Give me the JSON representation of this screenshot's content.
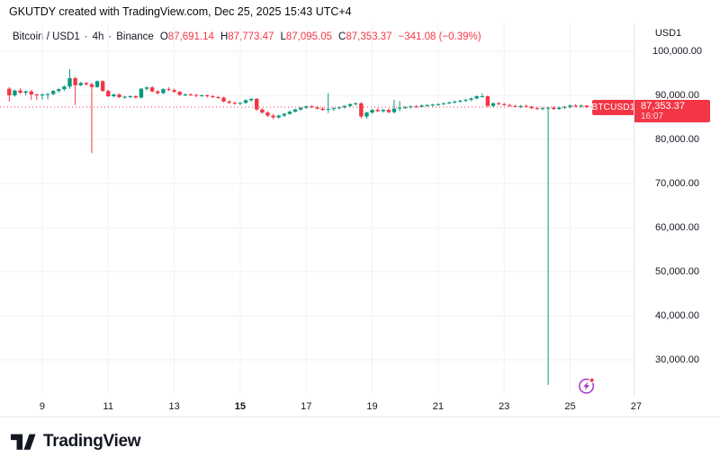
{
  "header": {
    "note": "GKUTDY created with TradingView.com, Dec 25, 2025 15:43 UTC+4"
  },
  "legend": {
    "symbol": "Bitcoin / USD1",
    "sep": "·",
    "interval": "4h",
    "exchange": "Binance",
    "open_label": "O",
    "open": "87,691.14",
    "high_label": "H",
    "high": "87,773.47",
    "low_label": "L",
    "low": "87,095.05",
    "close_label": "C",
    "close": "87,353.37",
    "change": "−341.08 (−0.39%)"
  },
  "price_axis": {
    "title": "USD1"
  },
  "price_tag": {
    "symbol": "BTCUSD1",
    "price": "87,353.37",
    "countdown": "16:07"
  },
  "footer": {
    "brand": "TradingView"
  },
  "icons": {
    "flash": "lightning-icon",
    "notification_dot": "red-dot"
  },
  "colors": {
    "up": "#089981",
    "down": "#F23645",
    "text": "#131722",
    "grid": "#F0F2F6",
    "border": "#E0E3EB",
    "icon_purple": "#A435C8"
  },
  "chart_data": {
    "type": "candlestick",
    "title": "Bitcoin / USD1 · 4h · Binance",
    "interval": "4h",
    "ylabel": "USD1",
    "grid": true,
    "legend_position": "top-left",
    "ylim": [
      21837,
      106327
    ],
    "last_price": 87353.37,
    "last_candle_ohlc": [
      87691.14,
      87773.47,
      87095.05,
      87353.37
    ],
    "y_ticks": [
      {
        "value": 100000,
        "label": "100,000.00"
      },
      {
        "value": 90000,
        "label": "90,000.00"
      },
      {
        "value": 80000,
        "label": "80,000.00"
      },
      {
        "value": 70000,
        "label": "70,000.00"
      },
      {
        "value": 60000,
        "label": "60,000.00"
      },
      {
        "value": 50000,
        "label": "50,000.00"
      },
      {
        "value": 40000,
        "label": "40,000.00"
      },
      {
        "value": 30000,
        "label": "30,000.00"
      }
    ],
    "x_ticks": [
      {
        "label": "9",
        "candle": 6,
        "bold": false
      },
      {
        "label": "11",
        "candle": 18,
        "bold": false
      },
      {
        "label": "13",
        "candle": 30,
        "bold": false
      },
      {
        "label": "15",
        "candle": 42,
        "bold": true
      },
      {
        "label": "17",
        "candle": 54,
        "bold": false
      },
      {
        "label": "19",
        "candle": 66,
        "bold": false
      },
      {
        "label": "21",
        "candle": 78,
        "bold": false
      },
      {
        "label": "23",
        "candle": 90,
        "bold": false
      },
      {
        "label": "25",
        "candle": 102,
        "bold": false
      },
      {
        "label": "27",
        "candle": 114,
        "bold": false
      }
    ],
    "candles": [
      [
        91500,
        91900,
        88600,
        90000
      ],
      [
        90000,
        91300,
        89700,
        91100
      ],
      [
        91100,
        91600,
        90300,
        90600
      ],
      [
        90600,
        91100,
        90000,
        90900
      ],
      [
        90900,
        91200,
        89000,
        90200
      ],
      [
        90200,
        90400,
        88900,
        90100
      ],
      [
        90100,
        90400,
        89000,
        90200
      ],
      [
        90200,
        90500,
        89100,
        90300
      ],
      [
        90300,
        91200,
        90000,
        91000
      ],
      [
        91000,
        91600,
        90600,
        91400
      ],
      [
        91400,
        92200,
        91000,
        92000
      ],
      [
        92000,
        95900,
        91500,
        93900
      ],
      [
        93900,
        94200,
        87800,
        92300
      ],
      [
        92300,
        93100,
        92100,
        92800
      ],
      [
        92800,
        93000,
        92200,
        92500
      ],
      [
        92500,
        92900,
        76900,
        91900
      ],
      [
        91900,
        93400,
        91700,
        93200
      ],
      [
        93200,
        93400,
        90800,
        91000
      ],
      [
        91000,
        91300,
        89600,
        89800
      ],
      [
        89800,
        90400,
        89500,
        90200
      ],
      [
        90200,
        90400,
        89400,
        89600
      ],
      [
        89600,
        89900,
        89200,
        89700
      ],
      [
        89700,
        90000,
        89400,
        89800
      ],
      [
        89800,
        90000,
        89300,
        89500
      ],
      [
        89500,
        91700,
        89300,
        91500
      ],
      [
        91500,
        92000,
        91100,
        91800
      ],
      [
        91800,
        92100,
        90700,
        90900
      ],
      [
        90900,
        91200,
        90200,
        90500
      ],
      [
        90500,
        91600,
        90300,
        91400
      ],
      [
        91400,
        91800,
        91000,
        91200
      ],
      [
        91200,
        91500,
        90600,
        90800
      ],
      [
        90800,
        91000,
        89900,
        90100
      ],
      [
        90100,
        90400,
        89800,
        90200
      ],
      [
        90200,
        90500,
        89900,
        90100
      ],
      [
        90100,
        90300,
        89600,
        89900
      ],
      [
        89900,
        90200,
        89700,
        90000
      ],
      [
        90000,
        90200,
        89500,
        89800
      ],
      [
        89800,
        90100,
        89400,
        89600
      ],
      [
        89600,
        89900,
        89200,
        89500
      ],
      [
        89500,
        89700,
        88400,
        88600
      ],
      [
        88600,
        88900,
        88100,
        88300
      ],
      [
        88300,
        88600,
        87900,
        88100
      ],
      [
        88100,
        88500,
        87800,
        88300
      ],
      [
        88300,
        89100,
        88100,
        88900
      ],
      [
        88900,
        89400,
        88600,
        89200
      ],
      [
        89200,
        89400,
        86500,
        86800
      ],
      [
        86800,
        87100,
        85800,
        86100
      ],
      [
        86100,
        86400,
        85100,
        85400
      ],
      [
        85400,
        85800,
        84600,
        85000
      ],
      [
        85000,
        85600,
        84700,
        85400
      ],
      [
        85400,
        86000,
        85100,
        85800
      ],
      [
        85800,
        86500,
        85600,
        86300
      ],
      [
        86300,
        87000,
        86100,
        86800
      ],
      [
        86800,
        87400,
        86500,
        87200
      ],
      [
        87200,
        87700,
        86900,
        87500
      ],
      [
        87500,
        87800,
        87100,
        87300
      ],
      [
        87300,
        87600,
        86800,
        87000
      ],
      [
        87000,
        87300,
        86500,
        86700
      ],
      [
        86700,
        90500,
        86000,
        86900
      ],
      [
        86900,
        87300,
        86500,
        87100
      ],
      [
        87100,
        87500,
        86800,
        87300
      ],
      [
        87300,
        87800,
        87000,
        87600
      ],
      [
        87600,
        88200,
        87300,
        88000
      ],
      [
        88000,
        88400,
        87700,
        88200
      ],
      [
        88200,
        88500,
        84800,
        85200
      ],
      [
        85200,
        86300,
        84700,
        86100
      ],
      [
        86100,
        86900,
        85800,
        86700
      ],
      [
        86700,
        87100,
        86200,
        86400
      ],
      [
        86400,
        86900,
        86100,
        86700
      ],
      [
        86700,
        87000,
        85900,
        86200
      ],
      [
        86200,
        89000,
        85900,
        87000
      ],
      [
        87000,
        88700,
        86400,
        87200
      ],
      [
        87200,
        87600,
        86900,
        87300
      ],
      [
        87300,
        87700,
        87000,
        87500
      ],
      [
        87500,
        87800,
        87200,
        87400
      ],
      [
        87400,
        87900,
        87200,
        87700
      ],
      [
        87700,
        88000,
        87400,
        87800
      ],
      [
        87800,
        88100,
        87500,
        87900
      ],
      [
        87900,
        88200,
        87600,
        88000
      ],
      [
        88000,
        88400,
        87800,
        88200
      ],
      [
        88200,
        88600,
        88000,
        88400
      ],
      [
        88400,
        88800,
        88100,
        88600
      ],
      [
        88600,
        89000,
        88300,
        88800
      ],
      [
        88800,
        89200,
        88500,
        89000
      ],
      [
        89000,
        89500,
        88700,
        89300
      ],
      [
        89300,
        90000,
        89100,
        89800
      ],
      [
        89800,
        90400,
        89500,
        89800
      ],
      [
        89800,
        90000,
        87300,
        87600
      ],
      [
        87600,
        88400,
        87400,
        88200
      ],
      [
        88200,
        88500,
        87800,
        88000
      ],
      [
        88000,
        88300,
        87600,
        87800
      ],
      [
        87800,
        88100,
        87400,
        87600
      ],
      [
        87600,
        87900,
        87200,
        87400
      ],
      [
        87400,
        87800,
        87100,
        87600
      ],
      [
        87600,
        87900,
        87200,
        87400
      ],
      [
        87400,
        87700,
        86900,
        87100
      ],
      [
        87100,
        87400,
        86700,
        86900
      ],
      [
        86900,
        87300,
        86600,
        87100
      ],
      [
        87100,
        87400,
        24300,
        87200
      ],
      [
        87200,
        87500,
        86700,
        86900
      ],
      [
        86900,
        87400,
        86700,
        87200
      ],
      [
        87200,
        87600,
        86900,
        87400
      ],
      [
        87400,
        87900,
        87100,
        87700
      ],
      [
        87700,
        88000,
        87300,
        87500
      ],
      [
        87500,
        87900,
        87200,
        87700
      ],
      [
        87691.14,
        87773.47,
        87095.05,
        87353.37
      ]
    ]
  }
}
